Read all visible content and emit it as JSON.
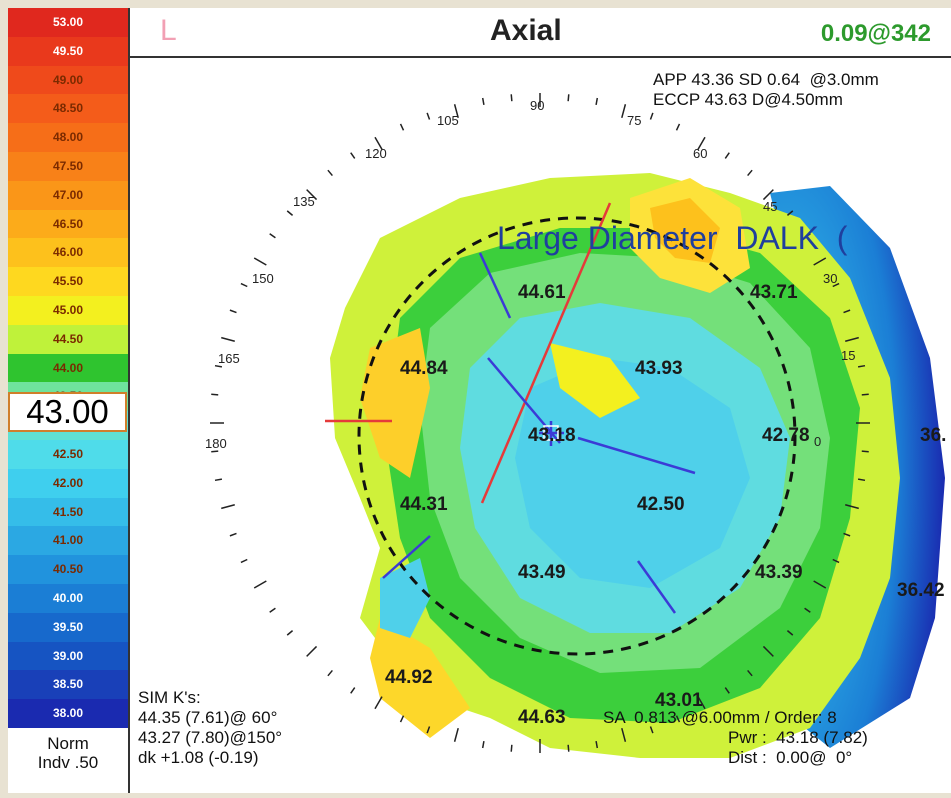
{
  "color_scale": {
    "steps": [
      {
        "value": "53.00",
        "color": "#e0281e"
      },
      {
        "value": "49.50",
        "color": "#e9391c"
      },
      {
        "value": "49.00",
        "color": "#ef4a1b"
      },
      {
        "value": "48.50",
        "color": "#f45c1a"
      },
      {
        "value": "48.00",
        "color": "#f66e18"
      },
      {
        "value": "47.50",
        "color": "#f88118"
      },
      {
        "value": "47.00",
        "color": "#fa9618"
      },
      {
        "value": "46.50",
        "color": "#fcab1a"
      },
      {
        "value": "46.00",
        "color": "#fdc11c"
      },
      {
        "value": "45.50",
        "color": "#fed81f"
      },
      {
        "value": "45.00",
        "color": "#f3f01f"
      },
      {
        "value": "44.50",
        "color": "#bff23a"
      },
      {
        "value": "44.00",
        "color": "#2fc42f"
      },
      {
        "value": "43.50",
        "color": "#6fe39d"
      },
      {
        "value": "43.00",
        "color": "#5fe1d2"
      },
      {
        "value": "42.50",
        "color": "#4fdcea"
      },
      {
        "value": "42.00",
        "color": "#3fcfee"
      },
      {
        "value": "41.50",
        "color": "#35bde9"
      },
      {
        "value": "41.00",
        "color": "#2ba8e3"
      },
      {
        "value": "40.50",
        "color": "#2193dd"
      },
      {
        "value": "40.00",
        "color": "#1b7ed5"
      },
      {
        "value": "39.50",
        "color": "#1769cc"
      },
      {
        "value": "39.00",
        "color": "#1654c2"
      },
      {
        "value": "38.50",
        "color": "#1940b8"
      },
      {
        "value": "38.00",
        "color": "#1a2ab0"
      }
    ],
    "current": "43.00",
    "legend": [
      "Norm",
      "Indv .50"
    ]
  },
  "header": {
    "eye": "L",
    "title": "Axial",
    "reading": "0.09@342"
  },
  "stats": {
    "app": "APP 43.36 SD 0.64  @3.0mm",
    "eccp": "ECCP 43.63 D@4.50mm"
  },
  "degree_labels": [
    "90",
    "105",
    "75",
    "120",
    "60",
    "135",
    "45",
    "150",
    "30",
    "165",
    "15",
    "180",
    "0"
  ],
  "map_values": [
    "44.61",
    "43.71",
    "44.84",
    "43.93",
    "43.18",
    "42.78",
    "44.31",
    "42.50",
    "43.49",
    "43.39",
    "44.92",
    "43.01",
    "44.63",
    "36.",
    "36.42"
  ],
  "sim_k": {
    "title": "SIM K's:",
    "k1": "44.35 (7.61)@ 60°",
    "k2": "43.27 (7.80)@150°",
    "dk": "dk +1.08 (-0.19)"
  },
  "bottom_right": {
    "sa": "SA  0.813 @6.00mm / Order: 8",
    "pwr": "Pwr :  43.18 (7.82)",
    "dist": "Dist :  0.00@  0°"
  },
  "overlay_caption": "Large Diameter  DALK  ("
}
